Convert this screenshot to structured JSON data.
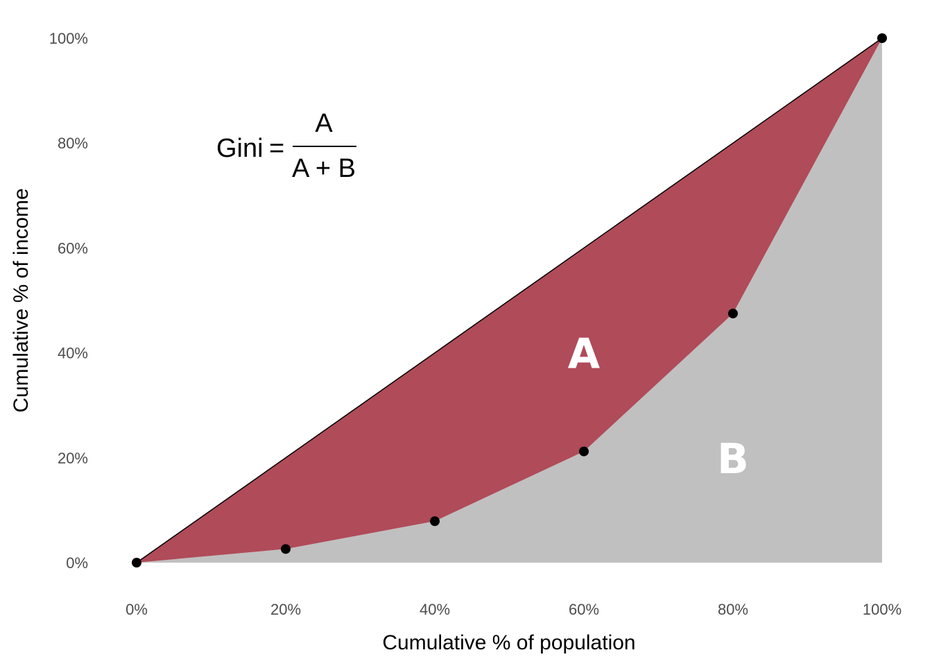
{
  "chart_data": {
    "type": "area",
    "x": [
      0,
      20,
      40,
      60,
      80,
      100
    ],
    "series": [
      {
        "values": [
          0,
          2.6,
          7.9,
          21.2,
          47.5,
          100
        ]
      }
    ],
    "equality_line": {
      "x": [
        0,
        100
      ],
      "y": [
        0,
        100
      ]
    },
    "xlabel": "Cumulative % of population",
    "ylabel": "Cumulative % of income",
    "xlim": [
      0,
      100
    ],
    "ylim": [
      0,
      100
    ],
    "x_ticks": [
      "0%",
      "20%",
      "40%",
      "60%",
      "80%",
      "100%"
    ],
    "y_ticks": [
      "0%",
      "20%",
      "40%",
      "60%",
      "80%",
      "100%"
    ],
    "grid": false,
    "legend": "none",
    "annotations": {
      "area_a": "A",
      "area_b": "B",
      "formula": {
        "lhs": "Gini",
        "equals": "=",
        "numerator": "A",
        "denominator": "A + B"
      }
    },
    "colors": {
      "area_a": "#b04b59",
      "area_b": "#c0c0c0",
      "points": "#000000",
      "equality_line": "#000000"
    }
  }
}
